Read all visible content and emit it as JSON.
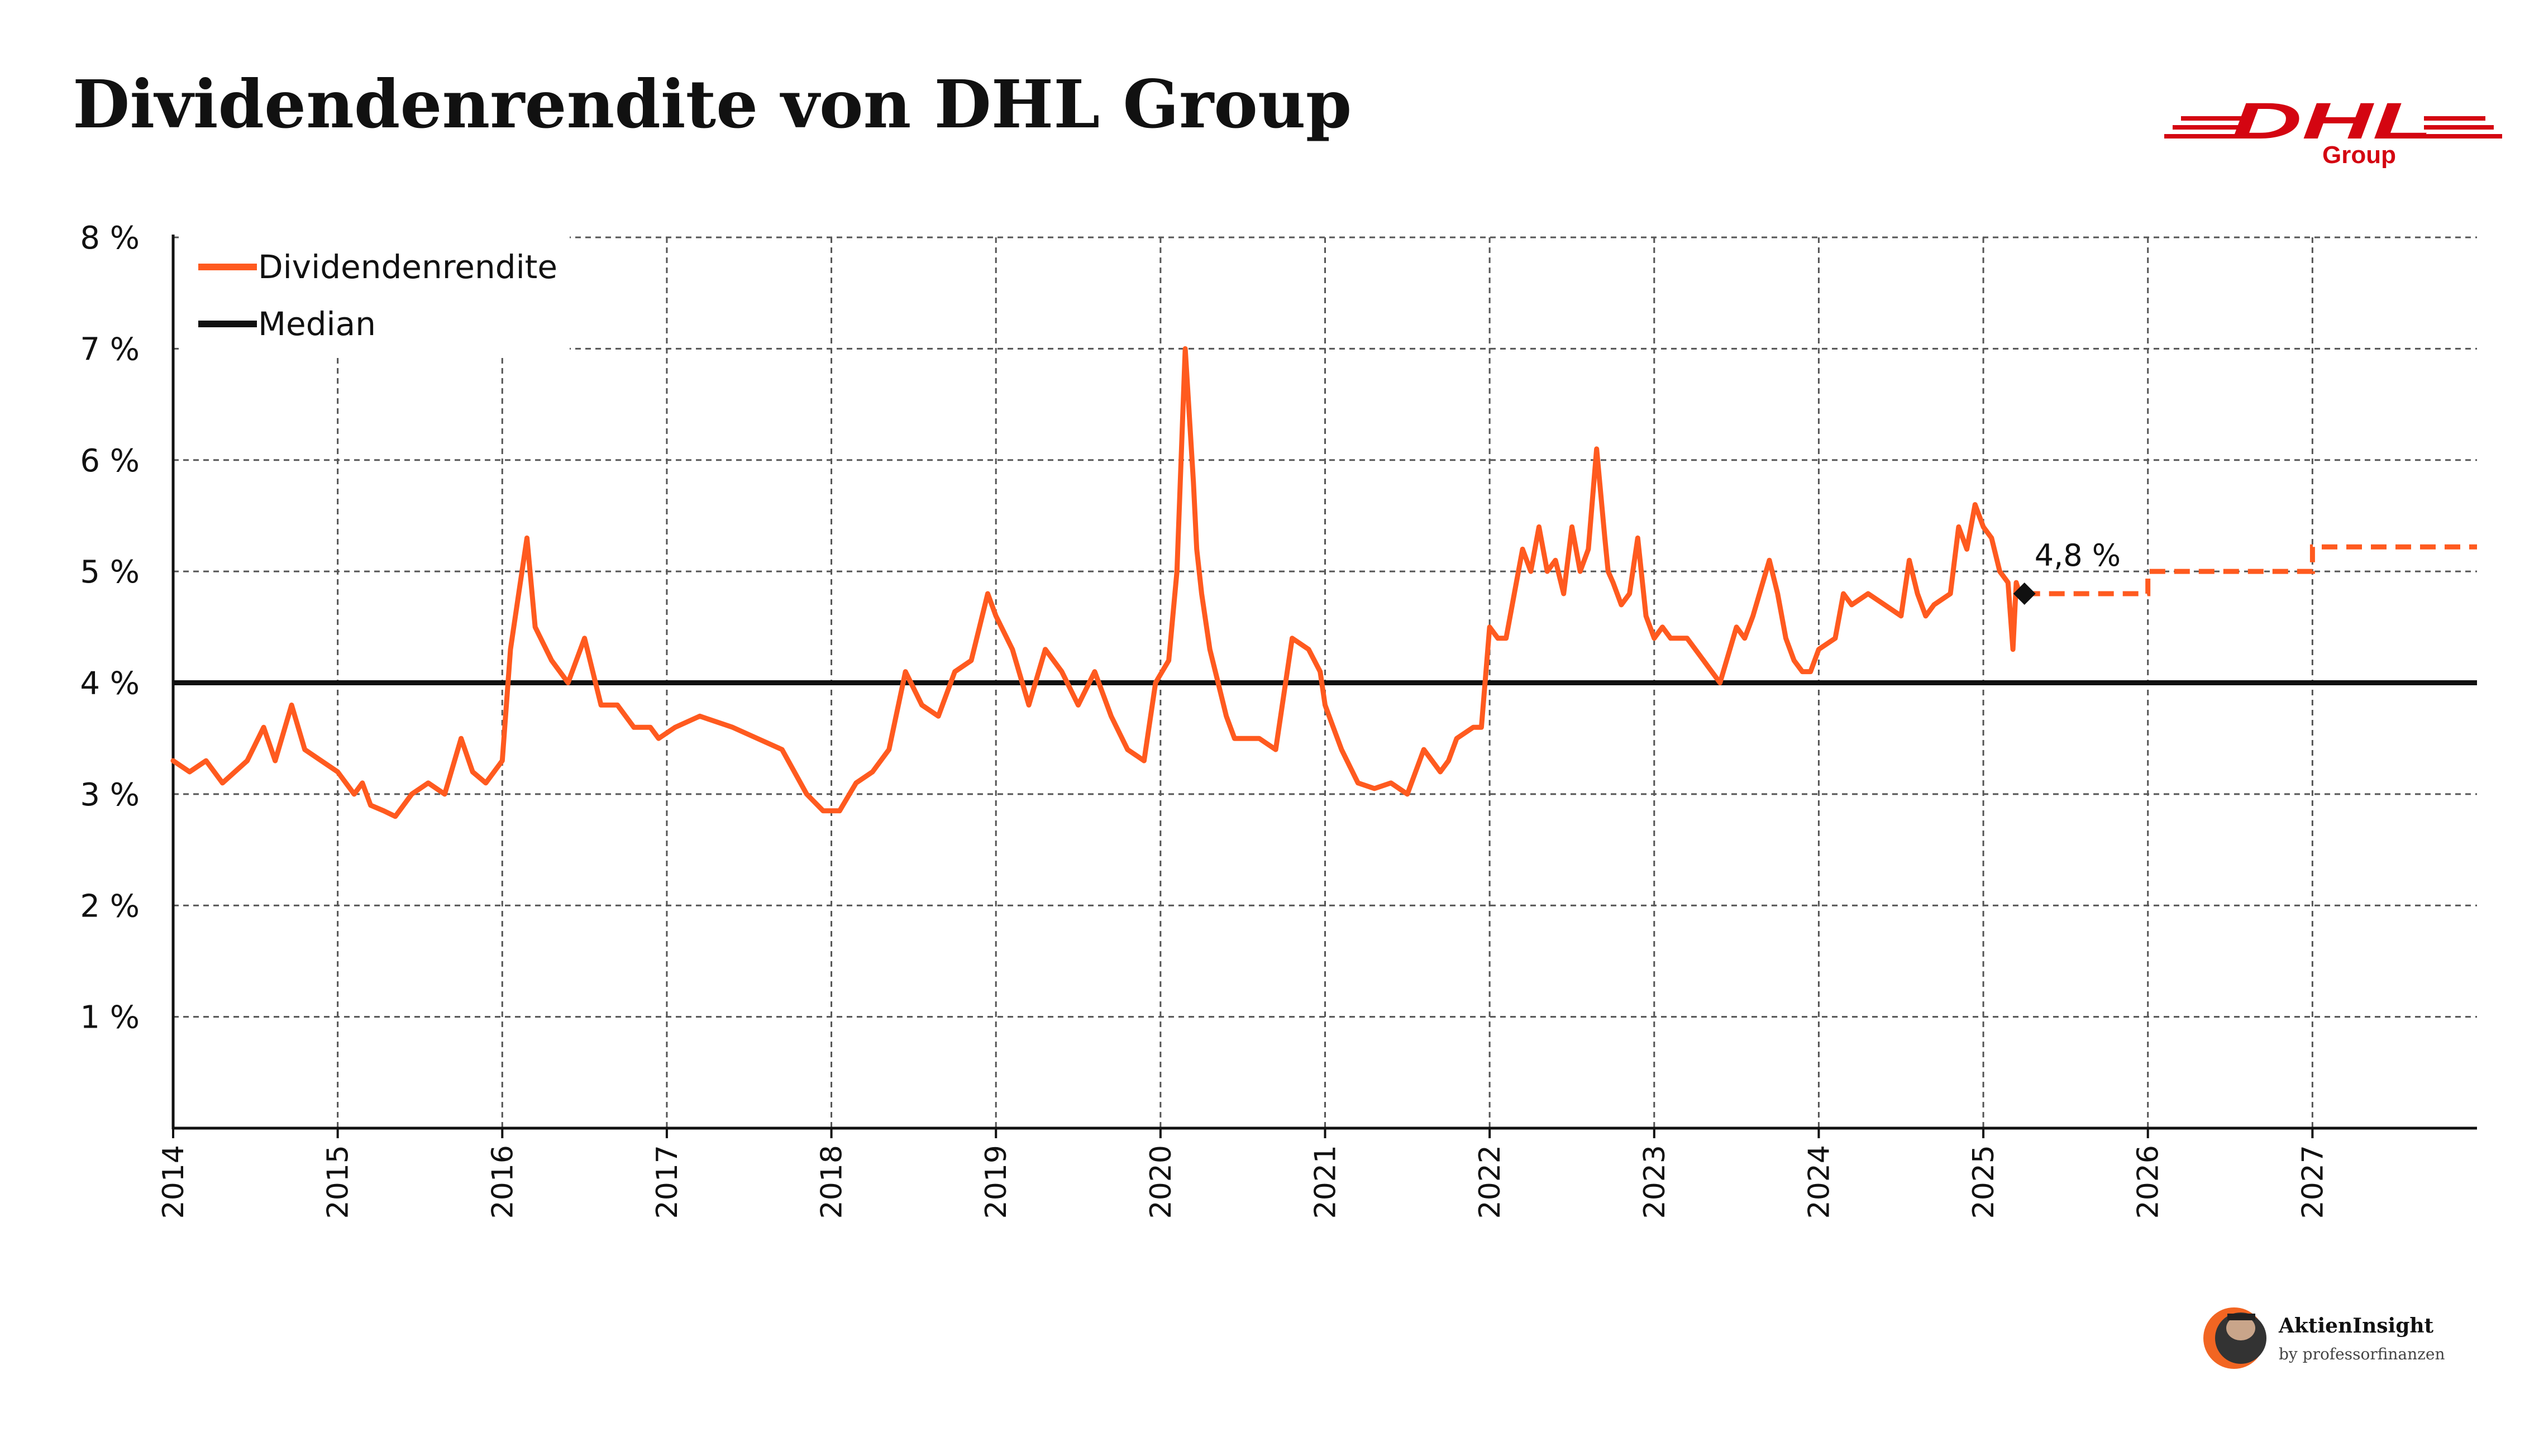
{
  "title": "Dividendenrendite von DHL Group",
  "logo": {
    "text": "DHL",
    "sub": "Group",
    "color": "#d40511"
  },
  "branding": {
    "name": "AktienInsight",
    "sub": "by professorfinanzen",
    "accent": "#f26522"
  },
  "chart_data": {
    "type": "line",
    "ylim": [
      0,
      8
    ],
    "xlim": [
      2014,
      2028
    ],
    "grid": true,
    "legend_position": "top-left",
    "y_ticks": [
      1,
      2,
      3,
      4,
      5,
      6,
      7,
      8
    ],
    "y_tick_labels": [
      "1 %",
      "2 %",
      "3 %",
      "4 %",
      "5 %",
      "6 %",
      "7 %",
      "8 %"
    ],
    "x_ticks": [
      2014,
      2015,
      2016,
      2017,
      2018,
      2019,
      2020,
      2021,
      2022,
      2023,
      2024,
      2025,
      2026,
      2027
    ],
    "x_tick_labels": [
      "2014",
      "2015",
      "2016",
      "2017",
      "2018",
      "2019",
      "2020",
      "2021",
      "2022",
      "2023",
      "2024",
      "2025",
      "2026",
      "2027"
    ],
    "colors": {
      "yield": "#ff5a1f",
      "median": "#111111",
      "grid": "#555555"
    },
    "series": [
      {
        "name": "Dividendenrendite",
        "x": [
          2014.0,
          2014.1,
          2014.2,
          2014.3,
          2014.45,
          2014.55,
          2014.62,
          2014.72,
          2014.8,
          2014.9,
          2015.0,
          2015.1,
          2015.15,
          2015.2,
          2015.28,
          2015.35,
          2015.45,
          2015.55,
          2015.65,
          2015.75,
          2015.82,
          2015.9,
          2016.0,
          2016.05,
          2016.1,
          2016.15,
          2016.2,
          2016.3,
          2016.4,
          2016.5,
          2016.6,
          2016.7,
          2016.8,
          2016.9,
          2016.95,
          2017.05,
          2017.2,
          2017.4,
          2017.55,
          2017.7,
          2017.85,
          2017.95,
          2018.05,
          2018.15,
          2018.25,
          2018.35,
          2018.45,
          2018.55,
          2018.65,
          2018.75,
          2018.85,
          2018.95,
          2019.0,
          2019.1,
          2019.2,
          2019.3,
          2019.4,
          2019.5,
          2019.6,
          2019.7,
          2019.8,
          2019.9,
          2019.97,
          2020.05,
          2020.1,
          2020.15,
          2020.2,
          2020.22,
          2020.25,
          2020.3,
          2020.35,
          2020.4,
          2020.45,
          2020.5,
          2020.6,
          2020.7,
          2020.8,
          2020.9,
          2020.97,
          2021.0,
          2021.05,
          2021.1,
          2021.2,
          2021.3,
          2021.4,
          2021.5,
          2021.6,
          2021.7,
          2021.75,
          2021.8,
          2021.9,
          2021.95,
          2022.0,
          2022.05,
          2022.1,
          2022.15,
          2022.2,
          2022.25,
          2022.3,
          2022.35,
          2022.4,
          2022.45,
          2022.5,
          2022.55,
          2022.6,
          2022.65,
          2022.7,
          2022.72,
          2022.75,
          2022.8,
          2022.85,
          2022.9,
          2022.95,
          2023.0,
          2023.05,
          2023.1,
          2023.2,
          2023.3,
          2023.4,
          2023.5,
          2023.55,
          2023.6,
          2023.7,
          2023.75,
          2023.8,
          2023.85,
          2023.9,
          2023.95,
          2024.0,
          2024.1,
          2024.15,
          2024.2,
          2024.3,
          2024.4,
          2024.5,
          2024.55,
          2024.6,
          2024.65,
          2024.7,
          2024.8,
          2024.85,
          2024.9,
          2024.95,
          2025.0,
          2025.05,
          2025.1,
          2025.15,
          2025.18,
          2025.2,
          2025.22,
          2025.25
        ],
        "y": [
          3.3,
          3.2,
          3.3,
          3.1,
          3.3,
          3.6,
          3.3,
          3.8,
          3.4,
          3.3,
          3.2,
          3.0,
          3.1,
          2.9,
          2.85,
          2.8,
          3.0,
          3.1,
          3.0,
          3.5,
          3.2,
          3.1,
          3.3,
          4.3,
          4.8,
          5.3,
          4.5,
          4.2,
          4.0,
          4.4,
          3.8,
          3.8,
          3.6,
          3.6,
          3.5,
          3.6,
          3.7,
          3.6,
          3.5,
          3.4,
          3.0,
          2.85,
          2.85,
          3.1,
          3.2,
          3.4,
          4.1,
          3.8,
          3.7,
          4.1,
          4.2,
          4.8,
          4.6,
          4.3,
          3.8,
          4.3,
          4.1,
          3.8,
          4.1,
          3.7,
          3.4,
          3.3,
          4.0,
          4.2,
          5.0,
          7.0,
          5.8,
          5.2,
          4.8,
          4.3,
          4.0,
          3.7,
          3.5,
          3.5,
          3.5,
          3.4,
          4.4,
          4.3,
          4.1,
          3.8,
          3.6,
          3.4,
          3.1,
          3.05,
          3.1,
          3.0,
          3.4,
          3.2,
          3.3,
          3.5,
          3.6,
          3.6,
          4.5,
          4.4,
          4.4,
          4.8,
          5.2,
          5.0,
          5.4,
          5.0,
          5.1,
          4.8,
          5.4,
          5.0,
          5.2,
          6.1,
          5.3,
          5.0,
          4.9,
          4.7,
          4.8,
          5.3,
          4.6,
          4.4,
          4.5,
          4.4,
          4.4,
          4.2,
          4.0,
          4.5,
          4.4,
          4.6,
          5.1,
          4.8,
          4.4,
          4.2,
          4.1,
          4.1,
          4.3,
          4.4,
          4.8,
          4.7,
          4.8,
          4.7,
          4.6,
          5.1,
          4.8,
          4.6,
          4.7,
          4.8,
          5.4,
          5.2,
          5.6,
          5.4,
          5.3,
          5.0,
          4.9,
          4.3,
          4.9,
          4.8,
          4.8
        ]
      },
      {
        "name": "",
        "style": "dashed",
        "x": [
          2025.25,
          2026.0,
          2026.0,
          2027.0,
          2027.0,
          2028.0
        ],
        "y": [
          4.8,
          4.8,
          5.0,
          5.0,
          5.22,
          5.22
        ]
      },
      {
        "name": "Median",
        "x": [
          2014,
          2028
        ],
        "y": [
          4.0,
          4.0
        ]
      }
    ],
    "annotations": [
      {
        "x": 2025.25,
        "y": 4.8,
        "text": "4,8 %"
      }
    ]
  }
}
